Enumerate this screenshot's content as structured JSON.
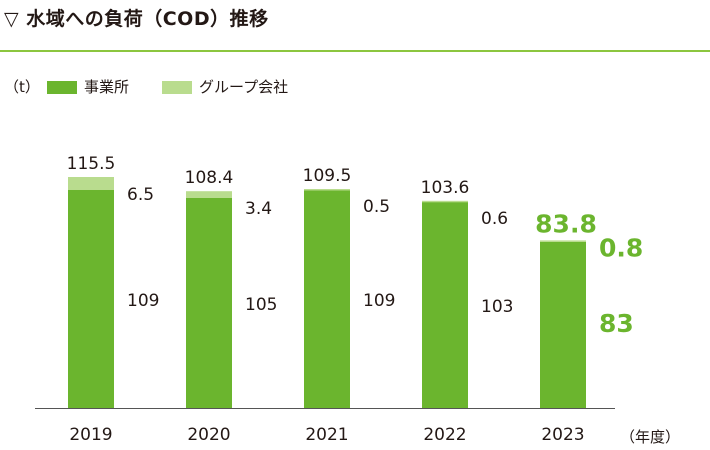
{
  "title": "▽ 水域への負荷（COD）推移",
  "unit": "（t）",
  "x_unit": "（年度）",
  "colors": {
    "accent": "#6bb52e",
    "series_company": "#6bb52e",
    "series_group": "#b9dc8e",
    "axis": "#555555",
    "rule": "#8cc63f"
  },
  "chart_data": {
    "type": "bar",
    "stacked": true,
    "categories": [
      "2019",
      "2020",
      "2021",
      "2022",
      "2023"
    ],
    "series": [
      {
        "name": "事業所",
        "values": [
          109,
          105,
          109,
          103,
          83
        ],
        "labels": [
          "109",
          "105",
          "109",
          "103",
          "83"
        ]
      },
      {
        "name": "グループ会社",
        "values": [
          6.5,
          3.4,
          0.5,
          0.6,
          0.8
        ],
        "labels": [
          "6.5",
          "3.4",
          "0.5",
          "0.6",
          "0.8"
        ]
      }
    ],
    "totals": [
      "115.5",
      "108.4",
      "109.5",
      "103.6",
      "83.8"
    ],
    "highlight_category": "2023",
    "ylim": [
      0,
      130
    ],
    "legend": "top-left",
    "grid": false
  }
}
